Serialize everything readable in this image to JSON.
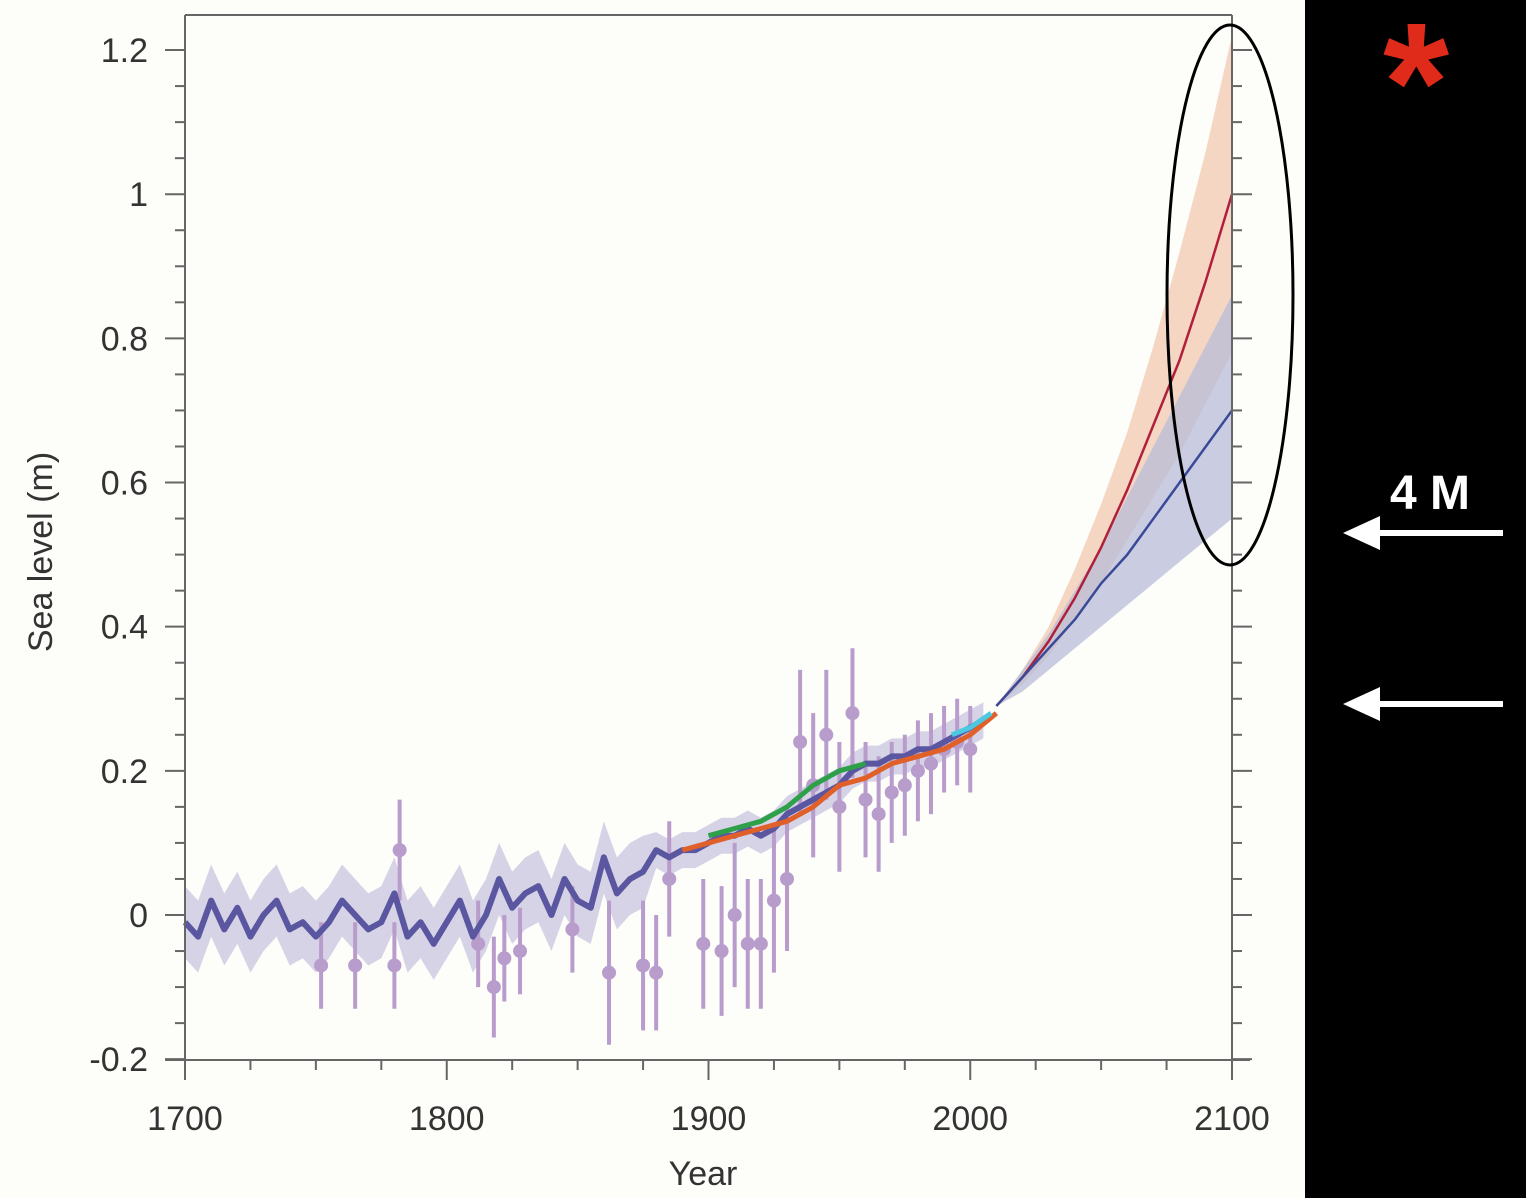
{
  "chart_data": {
    "type": "line",
    "xlabel": "Year",
    "ylabel": "Sea  level (m)",
    "xlim": [
      1700,
      2100
    ],
    "ylim": [
      -0.2,
      1.25
    ],
    "x_ticks": [
      1700,
      1800,
      1900,
      2000,
      2100
    ],
    "y_ticks": [
      -0.2,
      0,
      0.2,
      0.4,
      0.6,
      0.8,
      1.0,
      1.2
    ],
    "y_tick_labels": [
      "-0.2",
      "0",
      "0.2",
      "0.4",
      "0.6",
      "0.8",
      "1",
      "1.2"
    ],
    "grid": false,
    "series": [
      {
        "color": "#5a56a0",
        "band_color": "#c8c4e0",
        "x": [
          1700,
          1705,
          1710,
          1715,
          1720,
          1725,
          1730,
          1735,
          1740,
          1745,
          1750,
          1755,
          1760,
          1765,
          1770,
          1775,
          1780,
          1785,
          1790,
          1795,
          1800,
          1805,
          1810,
          1815,
          1820,
          1825,
          1830,
          1835,
          1840,
          1845,
          1850,
          1855,
          1860,
          1865,
          1870,
          1875,
          1880,
          1885,
          1890,
          1895,
          1900,
          1905,
          1910,
          1915,
          1920,
          1925,
          1930,
          1935,
          1940,
          1945,
          1950,
          1955,
          1960,
          1965,
          1970,
          1975,
          1980,
          1985,
          1990,
          1995,
          2000,
          2005
        ],
        "y": [
          -0.01,
          -0.03,
          0.02,
          -0.02,
          0.01,
          -0.03,
          0.0,
          0.02,
          -0.02,
          -0.01,
          -0.03,
          -0.01,
          0.02,
          0.0,
          -0.02,
          -0.01,
          0.03,
          -0.03,
          -0.01,
          -0.04,
          -0.01,
          0.02,
          -0.03,
          0.0,
          0.05,
          0.01,
          0.03,
          0.04,
          0.0,
          0.05,
          0.02,
          0.01,
          0.08,
          0.03,
          0.05,
          0.06,
          0.09,
          0.08,
          0.09,
          0.09,
          0.1,
          0.11,
          0.11,
          0.12,
          0.11,
          0.12,
          0.14,
          0.15,
          0.16,
          0.17,
          0.18,
          0.2,
          0.21,
          0.21,
          0.22,
          0.22,
          0.23,
          0.23,
          0.24,
          0.25,
          0.26,
          0.27
        ],
        "uncertainty": 0.05
      },
      {
        "color": "#2ea04a",
        "x": [
          1900,
          1910,
          1920,
          1930,
          1940,
          1950,
          1960
        ],
        "y": [
          0.11,
          0.12,
          0.13,
          0.15,
          0.18,
          0.2,
          0.21
        ]
      },
      {
        "color": "#e0602a",
        "x": [
          1890,
          1900,
          1910,
          1920,
          1930,
          1940,
          1950,
          1960,
          1970,
          1980,
          1990,
          2000,
          2010
        ],
        "y": [
          0.09,
          0.1,
          0.11,
          0.12,
          0.13,
          0.15,
          0.18,
          0.19,
          0.21,
          0.22,
          0.23,
          0.25,
          0.28
        ]
      },
      {
        "color": "#4cc8e0",
        "x": [
          1993,
          2000,
          2008
        ],
        "y": [
          0.25,
          0.26,
          0.28
        ]
      },
      {
        "color": "#b0203a",
        "band_color": "#f0c8b0",
        "x": [
          2010,
          2020,
          2030,
          2040,
          2050,
          2060,
          2070,
          2080,
          2090,
          2100
        ],
        "y": [
          0.29,
          0.33,
          0.38,
          0.44,
          0.51,
          0.59,
          0.68,
          0.77,
          0.88,
          1.0
        ],
        "y_low": [
          0.29,
          0.32,
          0.36,
          0.41,
          0.46,
          0.52,
          0.58,
          0.64,
          0.71,
          0.78
        ],
        "y_high": [
          0.29,
          0.34,
          0.4,
          0.48,
          0.57,
          0.67,
          0.79,
          0.92,
          1.06,
          1.22
        ]
      },
      {
        "color": "#3a4a98",
        "band_color": "#b8bcd8",
        "x": [
          2010,
          2020,
          2030,
          2040,
          2050,
          2060,
          2070,
          2080,
          2090,
          2100
        ],
        "y": [
          0.29,
          0.33,
          0.37,
          0.41,
          0.46,
          0.5,
          0.55,
          0.6,
          0.65,
          0.7
        ],
        "y_low": [
          0.29,
          0.31,
          0.34,
          0.37,
          0.4,
          0.43,
          0.46,
          0.49,
          0.52,
          0.55
        ],
        "y_high": [
          0.29,
          0.34,
          0.39,
          0.45,
          0.51,
          0.58,
          0.65,
          0.72,
          0.79,
          0.86
        ]
      }
    ],
    "points": {
      "color": "#b89ccc",
      "x": [
        1752,
        1765,
        1780,
        1782,
        1812,
        1818,
        1822,
        1828,
        1848,
        1862,
        1875,
        1880,
        1885,
        1898,
        1905,
        1910,
        1915,
        1920,
        1925,
        1930,
        1935,
        1940,
        1945,
        1950,
        1955,
        1960,
        1965,
        1970,
        1975,
        1980,
        1985,
        1990,
        1995,
        2000
      ],
      "y": [
        -0.07,
        -0.07,
        -0.07,
        0.09,
        -0.04,
        -0.1,
        -0.06,
        -0.05,
        -0.02,
        -0.08,
        -0.07,
        -0.08,
        0.05,
        -0.04,
        -0.05,
        0.0,
        -0.04,
        -0.04,
        0.02,
        0.05,
        0.24,
        0.18,
        0.25,
        0.15,
        0.28,
        0.16,
        0.14,
        0.17,
        0.18,
        0.2,
        0.21,
        0.23,
        0.24,
        0.23
      ],
      "err": [
        0.06,
        0.06,
        0.06,
        0.07,
        0.06,
        0.07,
        0.06,
        0.06,
        0.06,
        0.1,
        0.09,
        0.08,
        0.08,
        0.09,
        0.09,
        0.1,
        0.09,
        0.09,
        0.1,
        0.1,
        0.1,
        0.1,
        0.09,
        0.09,
        0.09,
        0.08,
        0.08,
        0.07,
        0.07,
        0.07,
        0.07,
        0.06,
        0.06,
        0.06
      ]
    }
  },
  "annotations": {
    "asterisk": "*",
    "asterisk_color": "#e02a1a",
    "arrow_label": "4 M",
    "ellipse_color": "#000000"
  }
}
